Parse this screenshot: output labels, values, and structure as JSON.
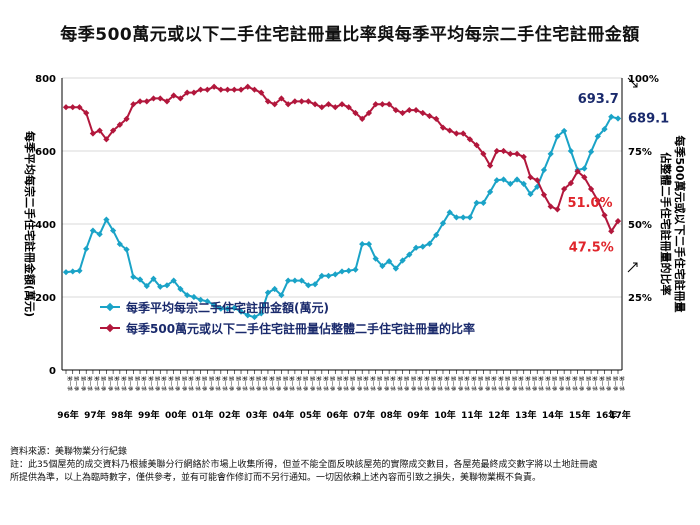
{
  "title": "每季500萬元或以下二手住宅註冊量比率與每季平均每宗二手住宅註冊金額",
  "chart_data": {
    "type": "line",
    "title": "每季500萬元或以下二手住宅註冊量比率與每季平均每宗二手住宅註冊金額",
    "y_left": {
      "label": "每季平均每宗二手住宅註冊金額(萬元)",
      "min": 0,
      "max": 800,
      "ticks": [
        "0",
        "200",
        "400",
        "600",
        "800"
      ]
    },
    "y_right": {
      "label_line1": "每季500萬元或以下二手住宅註冊量",
      "label_line2": "佔整體二手住宅註冊量的比率",
      "min": 0,
      "max": 100,
      "ticks": [
        "",
        "25%",
        "50%",
        "75%",
        "100%"
      ]
    },
    "x_year_labels": [
      "96年",
      "97年",
      "98年",
      "99年",
      "00年",
      "01年",
      "02年",
      "03年",
      "04年",
      "05年",
      "06年",
      "07年",
      "08年",
      "09年",
      "10年",
      "11年",
      "12年",
      "13年",
      "14年",
      "15年",
      "16年",
      "17年"
    ],
    "x_quarter_label": "第一季",
    "series": [
      {
        "name": "每季平均每宗二手住宅註冊金額(萬元)",
        "axis": "left",
        "color": "#1aa3c7",
        "values": [
          268,
          270,
          272,
          332,
          382,
          372,
          412,
          382,
          345,
          330,
          255,
          248,
          230,
          250,
          228,
          232,
          245,
          222,
          205,
          200,
          192,
          188,
          178,
          168,
          168,
          170,
          160,
          150,
          145,
          155,
          212,
          222,
          205,
          245,
          245,
          245,
          232,
          235,
          258,
          258,
          262,
          270,
          272,
          275,
          345,
          345,
          305,
          285,
          298,
          278,
          300,
          316,
          335,
          338,
          346,
          370,
          402,
          432,
          418,
          418,
          418,
          458,
          458,
          488,
          520,
          522,
          510,
          522,
          510,
          482,
          502,
          548,
          592,
          640,
          655,
          600,
          548,
          552,
          598,
          640,
          660,
          693.7,
          689.1
        ]
      },
      {
        "name": "每季500萬元或以下二手住宅註冊量佔整體二手住宅註冊量的比率",
        "axis": "right",
        "color": "#b2173c",
        "values": [
          90,
          90,
          90,
          88,
          81,
          82,
          79,
          82,
          84,
          86,
          91,
          92,
          92,
          93,
          93,
          92,
          94,
          93,
          95,
          95,
          96,
          96,
          97,
          96,
          96,
          96,
          96,
          97,
          96,
          95,
          92,
          91,
          93,
          91,
          92,
          92,
          92,
          91,
          90,
          91,
          90,
          91,
          90,
          88,
          86,
          88,
          91,
          91,
          91,
          89,
          88,
          89,
          89,
          88,
          87,
          86,
          83,
          82,
          81,
          81,
          79,
          77,
          74,
          70,
          75,
          75,
          74,
          74,
          73,
          66,
          65,
          60,
          56,
          55,
          62,
          64,
          68,
          66,
          62,
          58,
          53,
          47.5,
          51.0
        ]
      }
    ],
    "annotations": [
      {
        "text": "693.7",
        "series": 0,
        "index": 81
      },
      {
        "text": "689.1",
        "series": 0,
        "index": 82
      },
      {
        "text": "51.0%",
        "series": 1,
        "index": 82
      },
      {
        "text": "47.5%",
        "series": 1,
        "index": 81
      }
    ],
    "legend": {
      "position": "center-left"
    }
  },
  "source": {
    "line1": "資料來源：美聯物業分行紀錄",
    "line2": "註：此35個屋苑的成交資料乃根據美聯分行網絡於市場上收集所得，但並不能全面反映該屋苑的實際成交數目，各屋苑最終成交數字將以土地註冊處",
    "line3": "所提供為準，以上為臨時數字，僅供參考，並有可能會作修訂而不另行通知。一切因依賴上述內容而引致之損失，美聯物業概不負責。"
  }
}
